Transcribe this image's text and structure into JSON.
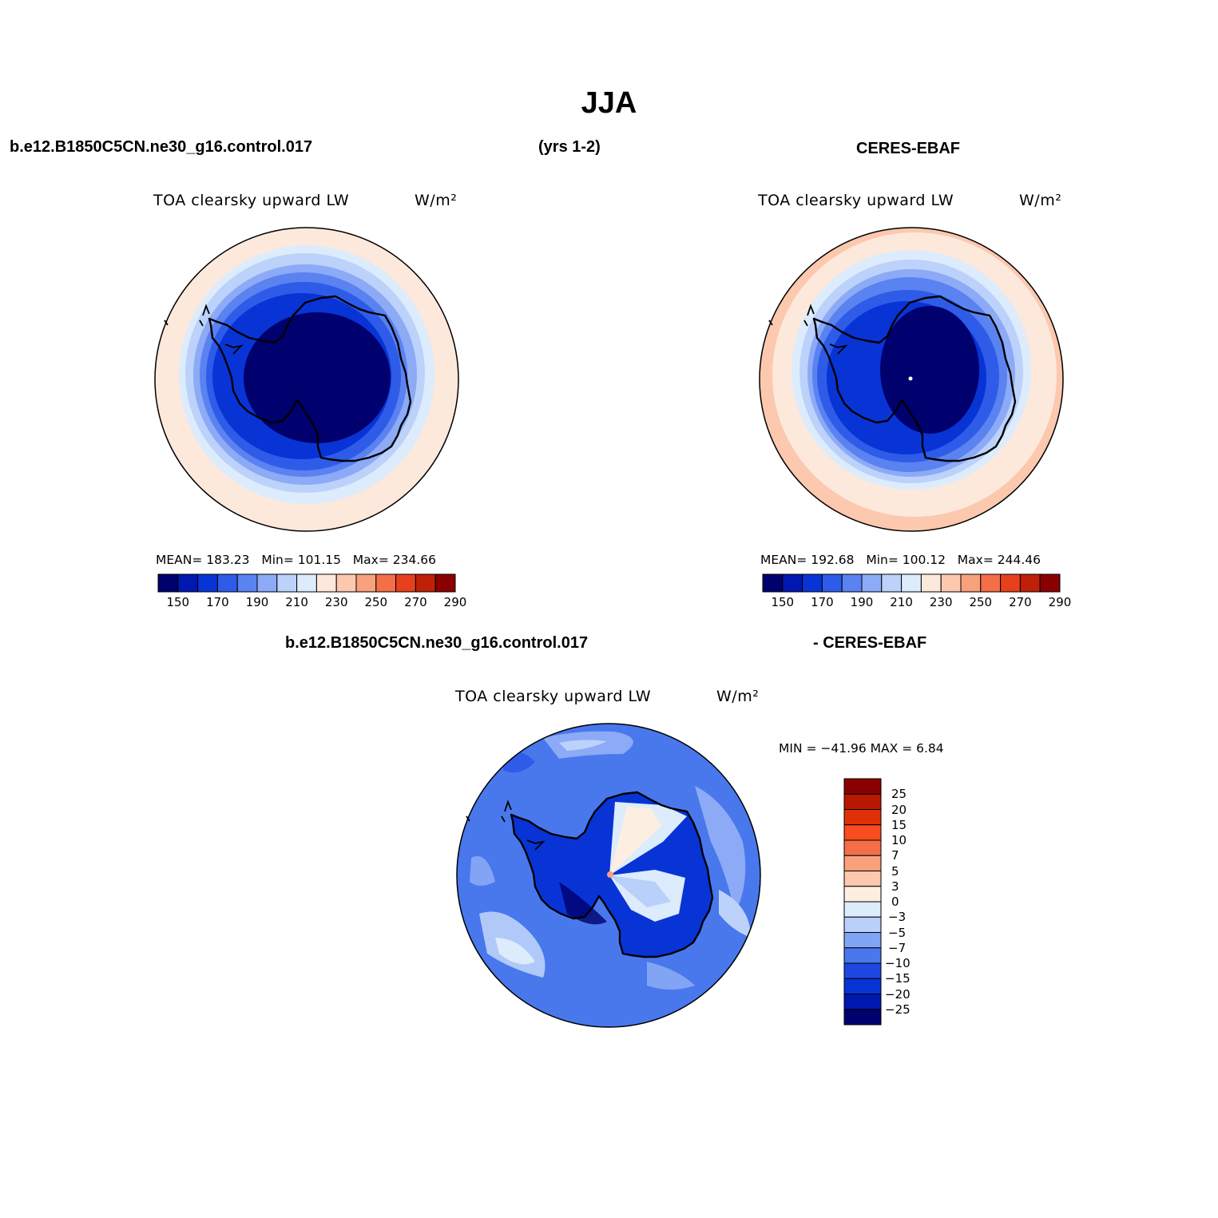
{
  "title": "JJA",
  "header": {
    "case_name": "b.e12.B1850C5CN.ne30_g16.control.017",
    "years": "(yrs 1-2)",
    "obs_name": "CERES-EBAF"
  },
  "diff_header": {
    "case_name": "b.e12.B1850C5CN.ne30_g16.control.017",
    "obs_name": "- CERES-EBAF"
  },
  "panels": {
    "model": {
      "variable": "TOA clearsky upward LW",
      "units": "W/m²",
      "stats": {
        "mean_label": "MEAN=",
        "mean": "183.23",
        "min_label": "Min=",
        "min": "101.15",
        "max_label": "Max=",
        "max": "234.66"
      }
    },
    "obs": {
      "variable": "TOA clearsky upward LW",
      "units": "W/m²",
      "stats": {
        "mean_label": "MEAN=",
        "mean": "192.68",
        "min_label": "Min=",
        "min": "100.12",
        "max_label": "Max=",
        "max": "244.46"
      }
    },
    "diff": {
      "variable": "TOA clearsky upward LW",
      "units": "W/m²",
      "minmax_text": "MIN = −41.96 MAX =    6.84"
    }
  },
  "colorbar_abs": {
    "colors": [
      "#00006e",
      "#0018b0",
      "#0834d6",
      "#2e5ce8",
      "#5a82f0",
      "#8caaf6",
      "#bcd2fa",
      "#dcecfc",
      "#fde8dc",
      "#fcc8ae",
      "#f9a07c",
      "#f46e48",
      "#e8401c",
      "#c02008",
      "#8a0000"
    ],
    "tick_labels": [
      "150",
      "170",
      "190",
      "210",
      "230",
      "250",
      "270",
      "290"
    ]
  },
  "colorbar_diff": {
    "colors": [
      "#00006e",
      "#0018b0",
      "#0834d6",
      "#1c48e0",
      "#4878ec",
      "#82a4f4",
      "#b8d0fa",
      "#dcecfc",
      "#fdeee2",
      "#fcc8ae",
      "#f9a07c",
      "#f46e48",
      "#fa4c1c",
      "#e03008",
      "#b81800",
      "#8a0000"
    ],
    "tick_labels": [
      "25",
      "20",
      "15",
      "10",
      "7",
      "5",
      "3",
      "0",
      "−3",
      "−5",
      "−7",
      "−10",
      "−15",
      "−20",
      "−25"
    ]
  },
  "map_colors": {
    "model_rings": [
      "#fde8dc",
      "#dcecfc",
      "#bcd2fa",
      "#8caaf6",
      "#5a82f0",
      "#2e5ce8",
      "#0834d6",
      "#00006e"
    ],
    "obs_rings": [
      "#fcc8ae",
      "#fde8dc",
      "#dcecfc",
      "#bcd2fa",
      "#8caaf6",
      "#5a82f0",
      "#2e5ce8",
      "#0834d6",
      "#00006e"
    ],
    "diff_base": "#4878ec"
  }
}
